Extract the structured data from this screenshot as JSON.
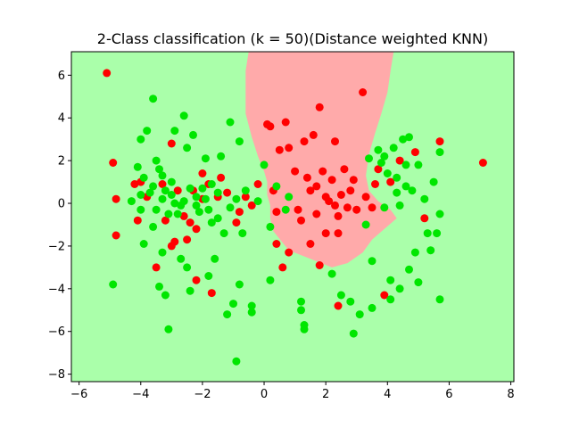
{
  "chart_data": {
    "type": "scatter",
    "title": "2-Class classification (k = 50)(Distance weighted KNN)",
    "xlabel": "",
    "ylabel": "",
    "xlim": [
      -6.25,
      8.1
    ],
    "ylim": [
      -8.35,
      7.1
    ],
    "xticks": [
      -6,
      -4,
      -2,
      0,
      2,
      4,
      6,
      8
    ],
    "yticks": [
      -8,
      -6,
      -4,
      -2,
      0,
      2,
      4,
      6
    ],
    "grid": false,
    "background_colors": {
      "class0_region": "#aaffaa",
      "class1_region": "#ffaaaa"
    },
    "decision_region_class1": [
      [
        -0.5,
        7.1
      ],
      [
        4.2,
        7.1
      ],
      [
        4.1,
        6.2
      ],
      [
        4.0,
        5.2
      ],
      [
        3.8,
        4.2
      ],
      [
        3.6,
        3.3
      ],
      [
        3.4,
        2.3
      ],
      [
        3.3,
        1.3
      ],
      [
        3.4,
        0.6
      ],
      [
        3.7,
        0.1
      ],
      [
        4.1,
        -0.3
      ],
      [
        4.3,
        -0.7
      ],
      [
        3.9,
        -1.2
      ],
      [
        3.5,
        -1.7
      ],
      [
        3.2,
        -2.3
      ],
      [
        2.7,
        -2.8
      ],
      [
        2.2,
        -3.0
      ],
      [
        1.5,
        -2.6
      ],
      [
        0.8,
        -2.2
      ],
      [
        0.3,
        -1.3
      ],
      [
        0.2,
        -0.7
      ],
      [
        0.2,
        -0.1
      ],
      [
        0.1,
        0.4
      ],
      [
        0.1,
        1.0
      ],
      [
        0.0,
        1.5
      ],
      [
        -0.2,
        2.2
      ],
      [
        -0.4,
        3.1
      ],
      [
        -0.6,
        4.2
      ],
      [
        -0.6,
        5.2
      ],
      [
        -0.6,
        6.2
      ]
    ],
    "series": [
      {
        "color": "#ff0000",
        "points": [
          [
            -5.1,
            6.1
          ],
          [
            -4.9,
            1.9
          ],
          [
            -4.8,
            0.2
          ],
          [
            -4.8,
            -1.5
          ],
          [
            -4.2,
            0.9
          ],
          [
            -4.1,
            -0.8
          ],
          [
            -4.0,
            1.0
          ],
          [
            -3.8,
            0.3
          ],
          [
            -3.5,
            -3.0
          ],
          [
            -3.3,
            0.9
          ],
          [
            -3.2,
            -0.8
          ],
          [
            -3.0,
            2.8
          ],
          [
            -3.0,
            -2.0
          ],
          [
            -2.9,
            -1.8
          ],
          [
            -2.8,
            0.6
          ],
          [
            -2.6,
            -0.6
          ],
          [
            -2.5,
            -1.7
          ],
          [
            -2.4,
            -0.9
          ],
          [
            -2.3,
            0.6
          ],
          [
            -2.2,
            -3.6
          ],
          [
            -2.2,
            -1.2
          ],
          [
            -2.0,
            1.4
          ],
          [
            -2.0,
            0.2
          ],
          [
            -1.8,
            0.9
          ],
          [
            -1.7,
            -4.2
          ],
          [
            -1.5,
            0.3
          ],
          [
            -1.4,
            1.2
          ],
          [
            -1.2,
            0.5
          ],
          [
            -0.9,
            -0.9
          ],
          [
            -0.8,
            -0.4
          ],
          [
            -0.6,
            0.3
          ],
          [
            -0.4,
            -0.1
          ],
          [
            -0.2,
            0.9
          ],
          [
            0.1,
            3.7
          ],
          [
            0.2,
            3.6
          ],
          [
            0.3,
            0.6
          ],
          [
            0.4,
            -1.9
          ],
          [
            0.4,
            -0.4
          ],
          [
            0.5,
            2.5
          ],
          [
            0.6,
            -3.0
          ],
          [
            0.7,
            3.8
          ],
          [
            0.8,
            2.6
          ],
          [
            0.8,
            -2.3
          ],
          [
            1.0,
            1.5
          ],
          [
            1.1,
            -0.3
          ],
          [
            1.2,
            -0.8
          ],
          [
            1.3,
            2.9
          ],
          [
            1.4,
            1.2
          ],
          [
            1.5,
            0.6
          ],
          [
            1.5,
            -1.9
          ],
          [
            1.6,
            3.2
          ],
          [
            1.7,
            0.8
          ],
          [
            1.7,
            -0.5
          ],
          [
            1.8,
            4.5
          ],
          [
            1.8,
            -2.9
          ],
          [
            1.9,
            1.5
          ],
          [
            2.0,
            0.3
          ],
          [
            2.0,
            -1.4
          ],
          [
            2.1,
            0.1
          ],
          [
            2.2,
            1.1
          ],
          [
            2.3,
            2.9
          ],
          [
            2.3,
            -0.1
          ],
          [
            2.4,
            -0.6
          ],
          [
            2.4,
            -1.4
          ],
          [
            2.4,
            -4.8
          ],
          [
            2.5,
            0.4
          ],
          [
            2.6,
            1.6
          ],
          [
            2.7,
            -0.2
          ],
          [
            2.8,
            0.6
          ],
          [
            2.9,
            1.1
          ],
          [
            3.0,
            -0.3
          ],
          [
            3.2,
            5.2
          ],
          [
            3.3,
            0.3
          ],
          [
            3.5,
            -0.2
          ],
          [
            3.6,
            0.9
          ],
          [
            3.7,
            1.6
          ],
          [
            3.9,
            -4.3
          ],
          [
            4.1,
            1.0
          ],
          [
            4.4,
            2.0
          ],
          [
            4.9,
            2.4
          ],
          [
            5.2,
            -0.7
          ],
          [
            5.7,
            2.9
          ],
          [
            7.1,
            1.9
          ]
        ]
      },
      {
        "color": "#00e600",
        "points": [
          [
            -4.9,
            -3.8
          ],
          [
            -4.1,
            1.7
          ],
          [
            -4.0,
            3.0
          ],
          [
            -4.0,
            0.4
          ],
          [
            -3.9,
            -1.9
          ],
          [
            -3.8,
            3.4
          ],
          [
            -3.7,
            0.5
          ],
          [
            -3.6,
            4.9
          ],
          [
            -3.6,
            -1.1
          ],
          [
            -3.5,
            2.0
          ],
          [
            -3.5,
            -0.3
          ],
          [
            -3.4,
            1.6
          ],
          [
            -3.4,
            -3.9
          ],
          [
            -3.3,
            0.2
          ],
          [
            -3.3,
            -2.3
          ],
          [
            -3.2,
            -4.3
          ],
          [
            -3.1,
            -5.9
          ],
          [
            -3.0,
            1.0
          ],
          [
            -2.9,
            3.4
          ],
          [
            -2.9,
            0.0
          ],
          [
            -2.8,
            -0.5
          ],
          [
            -2.7,
            -2.6
          ],
          [
            -2.6,
            4.1
          ],
          [
            -2.5,
            2.6
          ],
          [
            -2.5,
            -3.0
          ],
          [
            -2.4,
            -4.1
          ],
          [
            -2.3,
            3.2
          ],
          [
            -2.2,
            -0.1
          ],
          [
            -2.0,
            0.7
          ],
          [
            -1.9,
            2.1
          ],
          [
            -1.8,
            -0.3
          ],
          [
            -1.8,
            -3.4
          ],
          [
            -1.7,
            0.9
          ],
          [
            -1.6,
            -2.6
          ],
          [
            -1.5,
            -0.7
          ],
          [
            -1.4,
            2.2
          ],
          [
            -1.3,
            -1.4
          ],
          [
            -1.2,
            -5.2
          ],
          [
            -1.1,
            3.8
          ],
          [
            -1.0,
            -4.7
          ],
          [
            -0.9,
            -7.4
          ],
          [
            -0.8,
            2.9
          ],
          [
            -0.8,
            -3.8
          ],
          [
            -0.7,
            -1.4
          ],
          [
            -0.6,
            0.6
          ],
          [
            -0.4,
            -4.8
          ],
          [
            -0.4,
            -5.1
          ],
          [
            -0.2,
            0.1
          ],
          [
            0.0,
            1.8
          ],
          [
            0.2,
            -3.6
          ],
          [
            0.2,
            -1.1
          ],
          [
            0.4,
            0.8
          ],
          [
            0.7,
            -0.3
          ],
          [
            0.8,
            0.3
          ],
          [
            1.2,
            -4.6
          ],
          [
            1.2,
            -5.0
          ],
          [
            1.3,
            -5.7
          ],
          [
            1.3,
            -5.9
          ],
          [
            2.2,
            -3.3
          ],
          [
            2.5,
            -4.3
          ],
          [
            2.8,
            -4.6
          ],
          [
            2.9,
            -6.1
          ],
          [
            3.1,
            -5.2
          ],
          [
            3.3,
            -1.0
          ],
          [
            3.4,
            2.1
          ],
          [
            3.5,
            -4.9
          ],
          [
            3.5,
            -2.7
          ],
          [
            3.7,
            2.5
          ],
          [
            3.8,
            1.9
          ],
          [
            3.9,
            2.2
          ],
          [
            3.9,
            -0.2
          ],
          [
            4.0,
            1.4
          ],
          [
            4.1,
            -3.6
          ],
          [
            4.1,
            -4.5
          ],
          [
            4.2,
            2.6
          ],
          [
            4.3,
            1.2
          ],
          [
            4.3,
            0.5
          ],
          [
            4.4,
            -0.1
          ],
          [
            4.4,
            -4.0
          ],
          [
            4.5,
            3.0
          ],
          [
            4.6,
            1.8
          ],
          [
            4.6,
            0.8
          ],
          [
            4.7,
            -3.1
          ],
          [
            4.7,
            3.1
          ],
          [
            4.8,
            0.6
          ],
          [
            4.9,
            -2.3
          ],
          [
            5.0,
            -3.7
          ],
          [
            5.0,
            1.8
          ],
          [
            5.2,
            0.2
          ],
          [
            5.3,
            -1.4
          ],
          [
            5.4,
            -2.2
          ],
          [
            5.5,
            1.0
          ],
          [
            5.6,
            -1.4
          ],
          [
            5.7,
            2.4
          ],
          [
            5.7,
            -0.5
          ],
          [
            5.7,
            -4.5
          ],
          [
            -3.6,
            0.8
          ],
          [
            -3.3,
            1.3
          ],
          [
            -3.0,
            0.4
          ],
          [
            -2.6,
            0.1
          ],
          [
            -2.4,
            0.7
          ],
          [
            -2.1,
            -0.4
          ],
          [
            -1.9,
            0.2
          ],
          [
            -1.7,
            -0.9
          ],
          [
            -1.5,
            0.5
          ],
          [
            -1.1,
            -0.2
          ],
          [
            -0.9,
            0.2
          ],
          [
            -4.3,
            0.1
          ],
          [
            -4.0,
            -0.3
          ],
          [
            -3.9,
            1.2
          ],
          [
            -3.2,
            0.6
          ],
          [
            -3.1,
            -0.5
          ],
          [
            -2.7,
            -0.1
          ],
          [
            -2.2,
            0.3
          ]
        ]
      }
    ]
  }
}
